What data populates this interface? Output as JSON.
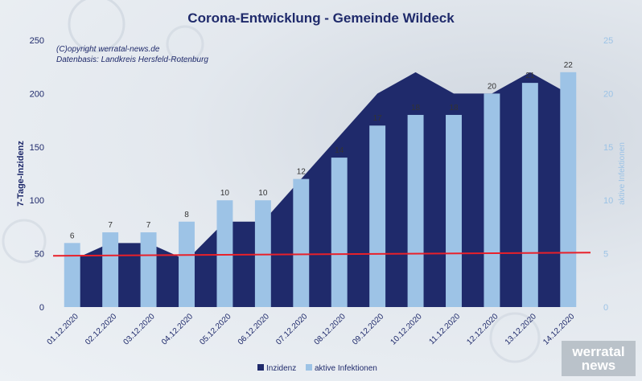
{
  "chart_data": {
    "type": "bar",
    "title": "Corona-Entwicklung - Gemeinde Wildeck",
    "notes": [
      "(C)opyright werratal-news.de",
      "Datenbasis: Landkreis Hersfeld-Rotenburg"
    ],
    "categories": [
      "01.12.2020",
      "02.12.2020",
      "03.12.2020",
      "04.12.2020",
      "05.12.2020",
      "06.12.2020",
      "07.12.2020",
      "08.12.2020",
      "09.12.2020",
      "10.12.2020",
      "11.12.2020",
      "12.12.2020",
      "13.12.2020",
      "14.12.2020"
    ],
    "ylabel": "7-Tage-Inzidenz",
    "ylabel_right": "aktive Infektionen",
    "ylim": [
      0,
      250
    ],
    "ylim_right": [
      0,
      25
    ],
    "yticks": [
      0,
      50,
      100,
      150,
      200,
      250
    ],
    "yticks_right": [
      0,
      5,
      10,
      15,
      20,
      25
    ],
    "reference_line": {
      "value": 48,
      "value_end": 51,
      "color": "#e8202a"
    },
    "series": [
      {
        "name": "Inzidenz",
        "type": "area",
        "axis": "left",
        "color": "#1f2a6b",
        "values": [
          44,
          60,
          60,
          44,
          80,
          80,
          120,
          160,
          200,
          220,
          200,
          200,
          220,
          200
        ]
      },
      {
        "name": "aktive Infektionen",
        "type": "bar",
        "axis": "right",
        "color": "#9dc3e6",
        "values": [
          6,
          7,
          7,
          8,
          10,
          10,
          12,
          14,
          17,
          18,
          18,
          20,
          21,
          22
        ]
      }
    ],
    "grid": false,
    "legend": "bottom"
  },
  "logo": {
    "line1": "werratal",
    "line2": "news"
  }
}
